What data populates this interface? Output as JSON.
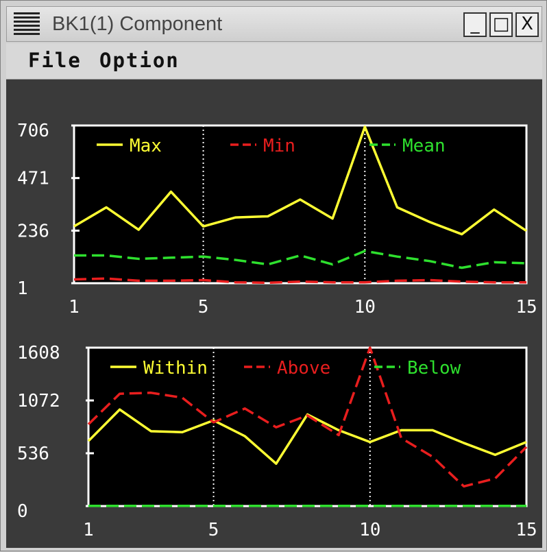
{
  "window": {
    "title": "BK1(1) Component",
    "buttons": {
      "minimize": "_",
      "maximize": "□",
      "close": "X"
    }
  },
  "menu": {
    "file": "File",
    "option": "Option"
  },
  "colors": {
    "yellow": "#ffff33",
    "red": "#e81e1e",
    "green": "#2ee02e",
    "background": "#3a3a3a",
    "plot": "#000000"
  },
  "chart_data": [
    {
      "type": "line",
      "x": [
        1,
        2,
        3,
        4,
        5,
        6,
        7,
        8,
        9,
        10,
        11,
        12,
        13,
        14,
        15
      ],
      "xticks": [
        1,
        5,
        10,
        15
      ],
      "yticks": [
        "1",
        "236",
        "471",
        "706"
      ],
      "ylim": [
        1,
        706
      ],
      "xlim": [
        1,
        15
      ],
      "vlines": [
        5,
        10
      ],
      "series": [
        {
          "name": "Max",
          "color": "#ffff33",
          "dash": false,
          "values": [
            255,
            340,
            240,
            410,
            255,
            295,
            300,
            375,
            290,
            700,
            340,
            275,
            220,
            330,
            235
          ]
        },
        {
          "name": "Min",
          "color": "#e81e1e",
          "dash": true,
          "values": [
            18,
            22,
            12,
            12,
            15,
            5,
            3,
            8,
            5,
            5,
            12,
            15,
            8,
            5,
            5
          ]
        },
        {
          "name": "Mean",
          "color": "#2ee02e",
          "dash": true,
          "values": [
            125,
            125,
            110,
            115,
            120,
            105,
            85,
            125,
            85,
            145,
            120,
            100,
            70,
            95,
            90
          ]
        }
      ]
    },
    {
      "type": "line",
      "x": [
        1,
        2,
        3,
        4,
        5,
        6,
        7,
        8,
        9,
        10,
        11,
        12,
        13,
        14,
        15
      ],
      "xticks": [
        1,
        5,
        10,
        15
      ],
      "yticks": [
        "0",
        "536",
        "1072",
        "1608"
      ],
      "ylim": [
        0,
        1608
      ],
      "xlim": [
        1,
        15
      ],
      "vlines": [
        5,
        10
      ],
      "series": [
        {
          "name": "Within",
          "color": "#ffff33",
          "dash": false,
          "values": [
            660,
            980,
            760,
            750,
            870,
            710,
            430,
            930,
            770,
            650,
            770,
            770,
            640,
            520,
            650
          ]
        },
        {
          "name": "Above",
          "color": "#e81e1e",
          "dash": true,
          "values": [
            830,
            1140,
            1150,
            1100,
            850,
            990,
            800,
            920,
            720,
            1608,
            690,
            500,
            200,
            280,
            600
          ]
        },
        {
          "name": "Below",
          "color": "#2ee02e",
          "dash": true,
          "values": [
            2,
            2,
            2,
            2,
            2,
            2,
            2,
            2,
            2,
            2,
            2,
            2,
            2,
            2,
            2
          ]
        }
      ]
    }
  ]
}
